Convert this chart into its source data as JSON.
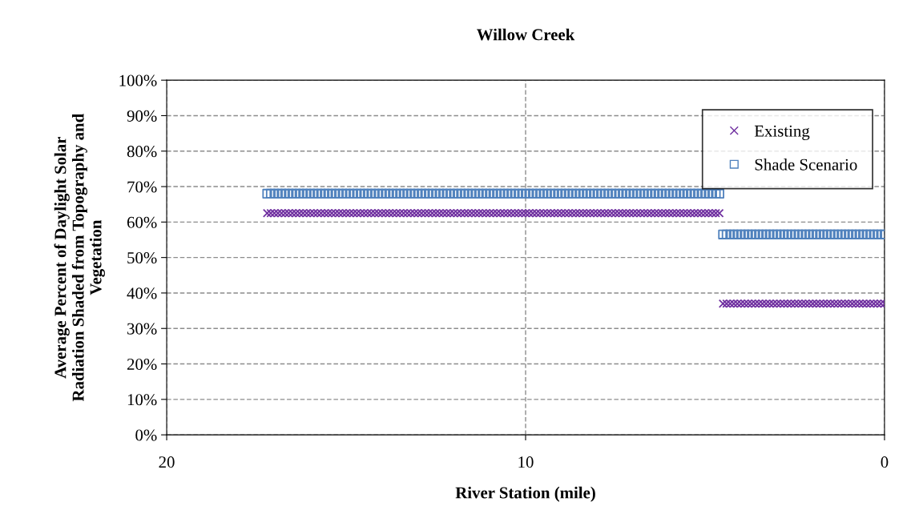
{
  "chart_data": {
    "type": "scatter",
    "title": "Willow Creek",
    "xlabel": "River Station (mile)",
    "ylabel": "Average Percent of Daylight Solar\nRadiation Shaded from Topography and\nVegetation",
    "xlim": [
      20,
      0
    ],
    "xticks": [
      20,
      10,
      0
    ],
    "ylim": [
      0,
      100
    ],
    "yticks": [
      {
        "value": 0,
        "label": "0%"
      },
      {
        "value": 10,
        "label": "10%"
      },
      {
        "value": 20,
        "label": "20%"
      },
      {
        "value": 30,
        "label": "30%"
      },
      {
        "value": 40,
        "label": "40%"
      },
      {
        "value": 50,
        "label": "50%"
      },
      {
        "value": 60,
        "label": "60%"
      },
      {
        "value": 70,
        "label": "70%"
      },
      {
        "value": 80,
        "label": "80%"
      },
      {
        "value": 90,
        "label": "90%"
      },
      {
        "value": 100,
        "label": "100%"
      }
    ],
    "grid": true,
    "legend": "top right",
    "x": [
      17.2,
      17.1,
      17,
      16.9,
      16.8,
      16.7,
      16.6,
      16.5,
      16.4,
      16.3,
      16.2,
      16.1,
      16,
      15.9,
      15.8,
      15.7,
      15.6,
      15.5,
      15.4,
      15.3,
      15.2,
      15.1,
      15,
      14.9,
      14.8,
      14.7,
      14.6,
      14.5,
      14.4,
      14.3,
      14.2,
      14.1,
      14,
      13.9,
      13.8,
      13.7,
      13.6,
      13.5,
      13.4,
      13.3,
      13.2,
      13.1,
      13,
      12.9,
      12.8,
      12.7,
      12.6,
      12.5,
      12.4,
      12.3,
      12.2,
      12.1,
      12,
      11.9,
      11.8,
      11.7,
      11.6,
      11.5,
      11.4,
      11.3,
      11.2,
      11.1,
      11,
      10.9,
      10.8,
      10.7,
      10.6,
      10.5,
      10.4,
      10.3,
      10.2,
      10.1,
      10,
      9.9,
      9.8,
      9.7,
      9.6,
      9.5,
      9.4,
      9.3,
      9.2,
      9.1,
      9,
      8.9,
      8.8,
      8.7,
      8.6,
      8.5,
      8.4,
      8.3,
      8.2,
      8.1,
      8,
      7.9,
      7.8,
      7.7,
      7.6,
      7.5,
      7.4,
      7.3,
      7.2,
      7.1,
      7,
      6.9,
      6.8,
      6.7,
      6.6,
      6.5,
      6.4,
      6.3,
      6.2,
      6.1,
      6,
      5.9,
      5.8,
      5.7,
      5.6,
      5.5,
      5.4,
      5.3,
      5.2,
      5.1,
      5,
      4.9,
      4.8,
      4.7,
      4.6,
      4.5,
      4.4,
      4.3,
      4.2,
      4.1,
      4,
      3.9,
      3.8,
      3.7,
      3.6,
      3.5,
      3.4,
      3.3,
      3.2,
      3.1,
      3,
      2.9,
      2.8,
      2.7,
      2.6,
      2.5,
      2.4,
      2.3,
      2.2,
      2.1,
      2,
      1.9,
      1.8,
      1.7,
      1.6,
      1.5,
      1.4,
      1.3,
      1.2,
      1.1,
      1,
      0.9,
      0.8,
      0.7,
      0.6,
      0.5,
      0.4,
      0.3,
      0.2,
      0.1,
      0
    ],
    "series": [
      {
        "name": "Existing",
        "color": "#7030a0",
        "marker": "cross",
        "values": [
          62.5,
          62.5,
          62.5,
          62.5,
          62.5,
          62.5,
          62.5,
          62.5,
          62.5,
          62.5,
          62.5,
          62.5,
          62.5,
          62.5,
          62.5,
          62.5,
          62.5,
          62.5,
          62.5,
          62.5,
          62.5,
          62.5,
          62.5,
          62.5,
          62.5,
          62.5,
          62.5,
          62.5,
          62.5,
          62.5,
          62.5,
          62.5,
          62.5,
          62.5,
          62.5,
          62.5,
          62.5,
          62.5,
          62.5,
          62.5,
          62.5,
          62.5,
          62.5,
          62.5,
          62.5,
          62.5,
          62.5,
          62.5,
          62.5,
          62.5,
          62.5,
          62.5,
          62.5,
          62.5,
          62.5,
          62.5,
          62.5,
          62.5,
          62.5,
          62.5,
          62.5,
          62.5,
          62.5,
          62.5,
          62.5,
          62.5,
          62.5,
          62.5,
          62.5,
          62.5,
          62.5,
          62.5,
          62.5,
          62.5,
          62.5,
          62.5,
          62.5,
          62.5,
          62.5,
          62.5,
          62.5,
          62.5,
          62.5,
          62.5,
          62.5,
          62.5,
          62.5,
          62.5,
          62.5,
          62.5,
          62.5,
          62.5,
          62.5,
          62.5,
          62.5,
          62.5,
          62.5,
          62.5,
          62.5,
          62.5,
          62.5,
          62.5,
          62.5,
          62.5,
          62.5,
          62.5,
          62.5,
          62.5,
          62.5,
          62.5,
          62.5,
          62.5,
          62.5,
          62.5,
          62.5,
          62.5,
          62.5,
          62.5,
          62.5,
          62.5,
          62.5,
          62.5,
          62.5,
          62.5,
          62.5,
          62.5,
          62.5,
          37,
          37,
          37,
          37,
          37,
          37,
          37,
          37,
          37,
          37,
          37,
          37,
          37,
          37,
          37,
          37,
          37,
          37,
          37,
          37,
          37,
          37,
          37,
          37,
          37,
          37,
          37,
          37,
          37,
          37,
          37,
          37,
          37,
          37,
          37,
          37,
          37,
          37,
          37,
          37,
          37,
          37,
          37,
          37,
          37,
          37
        ]
      },
      {
        "name": "Shade Scenario",
        "color": "#4f81bd",
        "marker": "square",
        "values": [
          68,
          68,
          68,
          68,
          68,
          68,
          68,
          68,
          68,
          68,
          68,
          68,
          68,
          68,
          68,
          68,
          68,
          68,
          68,
          68,
          68,
          68,
          68,
          68,
          68,
          68,
          68,
          68,
          68,
          68,
          68,
          68,
          68,
          68,
          68,
          68,
          68,
          68,
          68,
          68,
          68,
          68,
          68,
          68,
          68,
          68,
          68,
          68,
          68,
          68,
          68,
          68,
          68,
          68,
          68,
          68,
          68,
          68,
          68,
          68,
          68,
          68,
          68,
          68,
          68,
          68,
          68,
          68,
          68,
          68,
          68,
          68,
          68,
          68,
          68,
          68,
          68,
          68,
          68,
          68,
          68,
          68,
          68,
          68,
          68,
          68,
          68,
          68,
          68,
          68,
          68,
          68,
          68,
          68,
          68,
          68,
          68,
          68,
          68,
          68,
          68,
          68,
          68,
          68,
          68,
          68,
          68,
          68,
          68,
          68,
          68,
          68,
          68,
          68,
          68,
          68,
          68,
          68,
          68,
          68,
          68,
          68,
          68,
          68,
          68,
          68,
          68,
          56.5,
          56.5,
          56.5,
          56.5,
          56.5,
          56.5,
          56.5,
          56.5,
          56.5,
          56.5,
          56.5,
          56.5,
          56.5,
          56.5,
          56.5,
          56.5,
          56.5,
          56.5,
          56.5,
          56.5,
          56.5,
          56.5,
          56.5,
          56.5,
          56.5,
          56.5,
          56.5,
          56.5,
          56.5,
          56.5,
          56.5,
          56.5,
          56.5,
          56.5,
          56.5,
          56.5,
          56.5,
          56.5,
          56.5,
          56.5,
          56.5,
          56.5,
          56.5,
          56.5,
          56.5,
          56.5
        ]
      }
    ]
  }
}
